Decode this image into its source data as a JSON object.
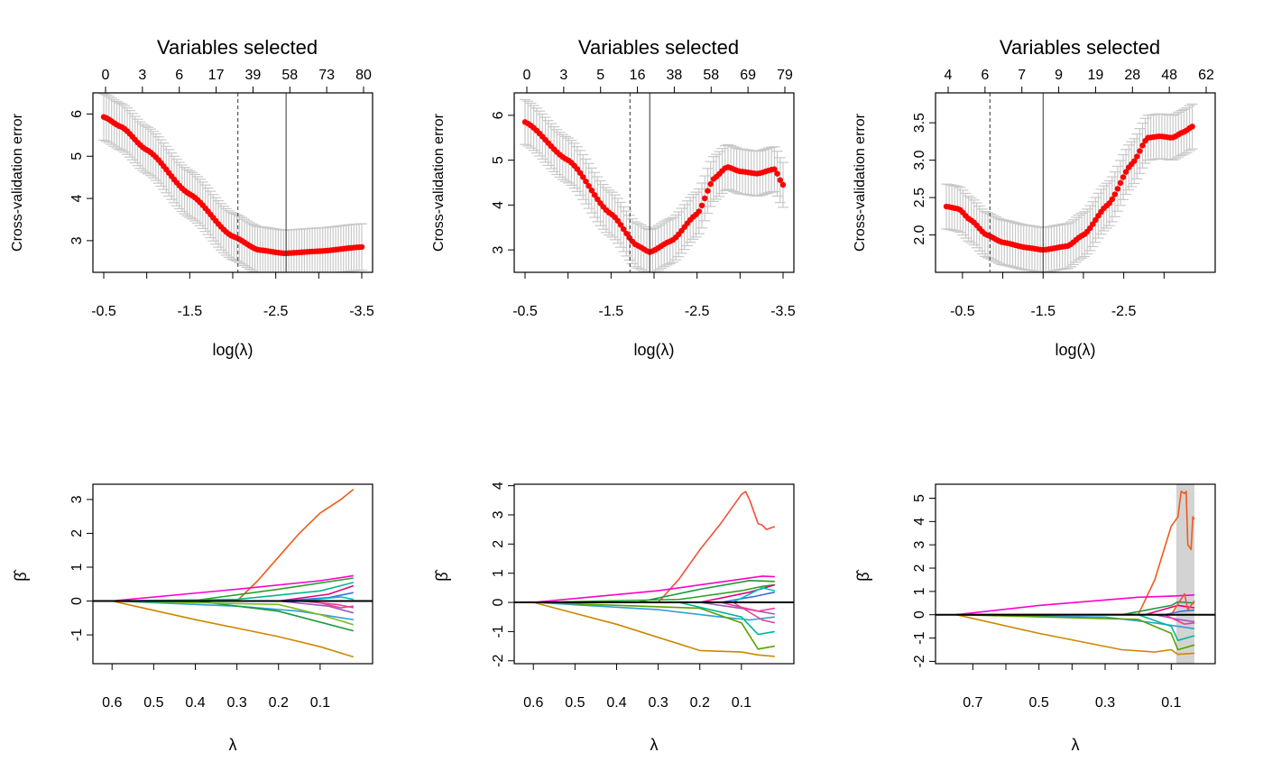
{
  "chart_data": [
    {
      "id": "cv1",
      "type": "scatter",
      "panel": "top-left",
      "title": "Variables selected",
      "top_ticks": [
        "0",
        "3",
        "6",
        "17",
        "39",
        "58",
        "73",
        "80"
      ],
      "xlabel": "log(λ)",
      "ylabel": "Cross-validation error",
      "xlim": [
        -0.5,
        -3.5
      ],
      "ylim": [
        2.25,
        6.5
      ],
      "xticks": [
        -0.5,
        -1.0,
        -1.5,
        -2.0,
        -2.5,
        -3.0,
        -3.5
      ],
      "xtick_labels": [
        "-0.5",
        "",
        "-1.5",
        "",
        "-2.5",
        "",
        "-3.5"
      ],
      "yticks": [
        3,
        4,
        5,
        6
      ],
      "ytick_labels": [
        "3",
        "4",
        "5",
        "6"
      ],
      "vlines": [
        {
          "x": -2.06,
          "style": "dashed"
        },
        {
          "x": -2.62,
          "style": "solid"
        }
      ],
      "series": {
        "name": "cv_error",
        "knots_x": [
          -0.5,
          -0.7,
          -1.0,
          -1.5,
          -2.0,
          -2.3,
          -2.6,
          -3.0,
          -3.5
        ],
        "knots_y": [
          5.93,
          5.7,
          5.15,
          4.1,
          3.1,
          2.78,
          2.7,
          2.75,
          2.85
        ],
        "se": 0.55,
        "n": 100
      }
    },
    {
      "id": "cv2",
      "type": "scatter",
      "panel": "top-middle",
      "title": "Variables selected",
      "top_ticks": [
        "0",
        "3",
        "5",
        "16",
        "38",
        "58",
        "69",
        "79"
      ],
      "xlabel": "log(λ)",
      "ylabel": "Cross-validation error",
      "xlim": [
        -0.5,
        -3.5
      ],
      "ylim": [
        2.5,
        6.5
      ],
      "xticks": [
        -0.5,
        -1.0,
        -1.5,
        -2.0,
        -2.5,
        -3.0,
        -3.5
      ],
      "xtick_labels": [
        "-0.5",
        "",
        "-1.5",
        "",
        "-2.5",
        "",
        "-3.5"
      ],
      "yticks": [
        3,
        4,
        5,
        6
      ],
      "ytick_labels": [
        "3",
        "4",
        "5",
        "6"
      ],
      "vlines": [
        {
          "x": -1.72,
          "style": "dashed"
        },
        {
          "x": -1.95,
          "style": "solid"
        }
      ],
      "series": {
        "name": "cv_error",
        "knots_x": [
          -0.5,
          -1.0,
          -1.5,
          -1.8,
          -1.95,
          -2.2,
          -2.5,
          -2.7,
          -2.85,
          -3.0,
          -3.2,
          -3.4,
          -3.5
        ],
        "knots_y": [
          5.85,
          5.0,
          3.8,
          3.1,
          2.95,
          3.2,
          3.8,
          4.6,
          4.85,
          4.75,
          4.7,
          4.8,
          4.45
        ],
        "se": 0.5,
        "n": 90
      }
    },
    {
      "id": "cv3",
      "type": "scatter",
      "panel": "top-right",
      "title": "Variables selected",
      "top_ticks": [
        "4",
        "6",
        "7",
        "9",
        "19",
        "28",
        "48",
        "62"
      ],
      "xlabel": "log(λ)",
      "ylabel": "Cross-validation error",
      "xlim": [
        -0.3,
        -3.5
      ],
      "ylim": [
        1.5,
        3.9
      ],
      "xticks": [
        -0.5,
        -1.0,
        -1.5,
        -2.0,
        -2.5,
        -3.0
      ],
      "xtick_labels": [
        "-0.5",
        "",
        "-1.5",
        "",
        "-2.5",
        ""
      ],
      "yticks": [
        2.0,
        2.5,
        3.0,
        3.5
      ],
      "ytick_labels": [
        "2.0",
        "2.5",
        "3.0",
        "3.5"
      ],
      "vlines": [
        {
          "x": -0.84,
          "style": "dashed"
        },
        {
          "x": -1.5,
          "style": "solid"
        }
      ],
      "series": {
        "name": "cv_error",
        "knots_x": [
          -0.3,
          -0.45,
          -0.6,
          -0.8,
          -1.0,
          -1.3,
          -1.5,
          -1.8,
          -2.0,
          -2.3,
          -2.6,
          -2.8,
          -2.95,
          -3.1,
          -3.25,
          -3.35
        ],
        "knots_y": [
          2.38,
          2.35,
          2.2,
          2.0,
          1.9,
          1.83,
          1.8,
          1.85,
          2.0,
          2.4,
          2.95,
          3.3,
          3.32,
          3.3,
          3.38,
          3.45
        ],
        "se": 0.3,
        "n": 90
      }
    },
    {
      "id": "path1",
      "type": "line",
      "panel": "bottom-left",
      "xlabel": "λ",
      "ylabel": "β̂",
      "xlim": [
        0.62,
        0.0
      ],
      "ylim": [
        -1.85,
        3.45
      ],
      "xticks": [
        0.6,
        0.5,
        0.4,
        0.3,
        0.2,
        0.1
      ],
      "xtick_labels": [
        "0.6",
        "0.5",
        "0.4",
        "0.3",
        "0.2",
        "0.1"
      ],
      "yticks": [
        -1,
        0,
        1,
        2,
        3
      ],
      "ytick_labels": [
        "-1",
        "0",
        "1",
        "2",
        "3"
      ],
      "hline": 0,
      "series": [
        {
          "name": "path-01",
          "color": "#f25a1a",
          "x": [
            0.6,
            0.3,
            0.25,
            0.2,
            0.15,
            0.1,
            0.05,
            0.02
          ],
          "y": [
            0,
            0,
            0.6,
            1.3,
            2.0,
            2.6,
            3.0,
            3.3
          ]
        },
        {
          "name": "path-02",
          "color": "#cc8800",
          "x": [
            0.6,
            0.4,
            0.2,
            0.1,
            0.02
          ],
          "y": [
            0,
            -0.55,
            -1.05,
            -1.35,
            -1.65
          ]
        },
        {
          "name": "path-03",
          "color": "#ff00cc",
          "x": [
            0.6,
            0.3,
            0.1,
            0.02
          ],
          "y": [
            0,
            0.35,
            0.6,
            0.75
          ]
        },
        {
          "name": "path-04",
          "color": "#2fa0d8",
          "x": [
            0.6,
            0.3,
            0.15,
            0.02
          ],
          "y": [
            0,
            -0.15,
            -0.3,
            -0.55
          ]
        },
        {
          "name": "path-05",
          "color": "#1a9a3a",
          "x": [
            0.6,
            0.4,
            0.2,
            0.02
          ],
          "y": [
            0,
            0,
            -0.3,
            -0.88
          ]
        },
        {
          "name": "path-06",
          "color": "#2aa02a",
          "x": [
            0.6,
            0.4,
            0.2,
            0.02
          ],
          "y": [
            0,
            0.02,
            0.35,
            0.68
          ]
        },
        {
          "name": "path-07",
          "color": "#00b894",
          "x": [
            0.6,
            0.3,
            0.1,
            0.02
          ],
          "y": [
            0,
            0.05,
            0.3,
            0.55
          ]
        },
        {
          "name": "path-08",
          "color": "#7bbf1a",
          "x": [
            0.6,
            0.2,
            0.1,
            0.02
          ],
          "y": [
            0,
            -0.1,
            -0.4,
            -0.7
          ]
        },
        {
          "name": "path-09",
          "color": "#e6007e",
          "x": [
            0.6,
            0.2,
            0.08,
            0.02
          ],
          "y": [
            0,
            0,
            0.2,
            0.45
          ]
        },
        {
          "name": "path-10",
          "color": "#9b59b6",
          "x": [
            0.6,
            0.2,
            0.08,
            0.02
          ],
          "y": [
            0,
            0,
            -0.15,
            -0.35
          ]
        },
        {
          "name": "path-11",
          "color": "#3b6fd8",
          "x": [
            0.6,
            0.2,
            0.08,
            0.02
          ],
          "y": [
            0,
            0,
            0.1,
            0.25
          ]
        },
        {
          "name": "path-12",
          "color": "#ff3399",
          "x": [
            0.6,
            0.15,
            0.06,
            0.02
          ],
          "y": [
            0,
            0,
            -0.1,
            -0.2
          ]
        },
        {
          "name": "path-13",
          "color": "#00c0c0",
          "x": [
            0.6,
            0.15,
            0.05,
            0.02
          ],
          "y": [
            0,
            0,
            0.12,
            0.05
          ]
        },
        {
          "name": "path-14",
          "color": "#e84393",
          "x": [
            0.6,
            0.12,
            0.05,
            0.02
          ],
          "y": [
            0,
            0,
            -0.2,
            -0.15
          ]
        }
      ]
    },
    {
      "id": "path2",
      "type": "line",
      "panel": "bottom-middle",
      "xlabel": "λ",
      "ylabel": "β̂",
      "xlim": [
        0.62,
        0.0
      ],
      "ylim": [
        -2.1,
        4.05
      ],
      "xticks": [
        0.6,
        0.5,
        0.4,
        0.3,
        0.2,
        0.1
      ],
      "xtick_labels": [
        "0.6",
        "0.5",
        "0.4",
        "0.3",
        "0.2",
        "0.1"
      ],
      "yticks": [
        -2,
        -1,
        0,
        1,
        2,
        3,
        4
      ],
      "ytick_labels": [
        "-2",
        "-1",
        "0",
        "1",
        "2",
        "3",
        "4"
      ],
      "hline": 0,
      "series": [
        {
          "name": "path-01",
          "color": "#f2503a",
          "x": [
            0.6,
            0.3,
            0.25,
            0.2,
            0.15,
            0.1,
            0.09,
            0.08,
            0.06,
            0.05,
            0.04,
            0.02
          ],
          "y": [
            0,
            0,
            0.8,
            1.8,
            2.7,
            3.7,
            3.8,
            3.5,
            2.7,
            2.65,
            2.5,
            2.6
          ]
        },
        {
          "name": "path-02",
          "color": "#cc8800",
          "x": [
            0.6,
            0.4,
            0.2,
            0.1,
            0.06,
            0.02
          ],
          "y": [
            0,
            -0.75,
            -1.65,
            -1.7,
            -1.8,
            -1.85
          ]
        },
        {
          "name": "path-03",
          "color": "#ff00cc",
          "x": [
            0.6,
            0.3,
            0.1,
            0.05,
            0.02
          ],
          "y": [
            0,
            0.4,
            0.8,
            0.9,
            0.88
          ]
        },
        {
          "name": "path-04",
          "color": "#2fa0d8",
          "x": [
            0.6,
            0.3,
            0.15,
            0.08,
            0.02
          ],
          "y": [
            0,
            -0.25,
            -0.5,
            -0.6,
            -0.5
          ]
        },
        {
          "name": "path-05",
          "color": "#1a9a3a",
          "x": [
            0.6,
            0.35,
            0.2,
            0.08,
            0.02
          ],
          "y": [
            0,
            0,
            0.45,
            0.75,
            0.72
          ]
        },
        {
          "name": "path-06",
          "color": "#5aa000",
          "x": [
            0.6,
            0.2,
            0.1,
            0.06,
            0.02
          ],
          "y": [
            0,
            -0.2,
            -0.7,
            -1.6,
            -1.5
          ]
        },
        {
          "name": "path-07",
          "color": "#00b894",
          "x": [
            0.6,
            0.25,
            0.1,
            0.06,
            0.02
          ],
          "y": [
            0,
            0,
            -0.5,
            -1.1,
            -1.0
          ]
        },
        {
          "name": "path-08",
          "color": "#2aa02a",
          "x": [
            0.6,
            0.25,
            0.1,
            0.05,
            0.02
          ],
          "y": [
            0,
            0.1,
            0.4,
            0.55,
            0.6
          ]
        },
        {
          "name": "path-09",
          "color": "#e6007e",
          "x": [
            0.6,
            0.2,
            0.08,
            0.02
          ],
          "y": [
            0,
            0,
            0.35,
            0.6
          ]
        },
        {
          "name": "path-10",
          "color": "#9b59b6",
          "x": [
            0.6,
            0.2,
            0.08,
            0.02
          ],
          "y": [
            0,
            0,
            -0.25,
            -0.4
          ]
        },
        {
          "name": "path-11",
          "color": "#3b6fd8",
          "x": [
            0.6,
            0.15,
            0.07,
            0.02
          ],
          "y": [
            0,
            0,
            0.2,
            0.35
          ]
        },
        {
          "name": "path-12",
          "color": "#ff3399",
          "x": [
            0.6,
            0.15,
            0.06,
            0.02
          ],
          "y": [
            0,
            0,
            -0.3,
            -0.2
          ]
        },
        {
          "name": "path-13",
          "color": "#00c0c0",
          "x": [
            0.6,
            0.12,
            0.05,
            0.02
          ],
          "y": [
            0,
            0,
            0.5,
            0.4
          ]
        },
        {
          "name": "path-14",
          "color": "#e84393",
          "x": [
            0.6,
            0.12,
            0.05,
            0.02
          ],
          "y": [
            0,
            0,
            -0.6,
            -0.7
          ]
        }
      ]
    },
    {
      "id": "path3",
      "type": "line",
      "panel": "bottom-right",
      "xlabel": "λ",
      "ylabel": "β̂",
      "xlim": [
        0.78,
        0.0
      ],
      "ylim": [
        -2.1,
        5.6
      ],
      "xticks": [
        0.7,
        0.6,
        0.5,
        0.4,
        0.3,
        0.2,
        0.1
      ],
      "xtick_labels": [
        "0.7",
        "",
        "0.5",
        "",
        "0.3",
        "",
        "0.1"
      ],
      "yticks": [
        -2,
        -1,
        0,
        1,
        2,
        3,
        4,
        5
      ],
      "ytick_labels": [
        "-2",
        "-1",
        "0",
        "1",
        "2",
        "3",
        "4",
        "5"
      ],
      "hline": 0,
      "shade": {
        "from": 0.085,
        "to": 0.03
      },
      "series": [
        {
          "name": "path-01",
          "color": "#f25a1a",
          "x": [
            0.75,
            0.2,
            0.15,
            0.1,
            0.08,
            0.07,
            0.06,
            0.055,
            0.05,
            0.04,
            0.035,
            0.03
          ],
          "y": [
            0,
            0,
            1.5,
            3.8,
            4.2,
            5.3,
            5.2,
            5.3,
            3.0,
            2.8,
            4.2,
            4.1
          ]
        },
        {
          "name": "path-02",
          "color": "#cc8800",
          "x": [
            0.75,
            0.5,
            0.25,
            0.15,
            0.1,
            0.08,
            0.03
          ],
          "y": [
            0,
            -0.8,
            -1.5,
            -1.6,
            -1.5,
            -1.7,
            -1.65
          ]
        },
        {
          "name": "path-03",
          "color": "#ff00cc",
          "x": [
            0.75,
            0.5,
            0.2,
            0.1,
            0.03
          ],
          "y": [
            0,
            0.4,
            0.75,
            0.8,
            0.85
          ]
        },
        {
          "name": "path-04",
          "color": "#2fa0d8",
          "x": [
            0.75,
            0.3,
            0.15,
            0.08,
            0.03
          ],
          "y": [
            0,
            -0.1,
            -0.35,
            -0.5,
            -0.6
          ]
        },
        {
          "name": "path-05",
          "color": "#1a9a3a",
          "x": [
            0.75,
            0.25,
            0.1,
            0.08,
            0.03
          ],
          "y": [
            0,
            0,
            0.4,
            0.55,
            0.5
          ]
        },
        {
          "name": "path-06",
          "color": "#5aa000",
          "x": [
            0.75,
            0.2,
            0.1,
            0.08,
            0.03
          ],
          "y": [
            0,
            -0.2,
            -0.8,
            -1.5,
            -1.3
          ]
        },
        {
          "name": "path-07",
          "color": "#00b894",
          "x": [
            0.75,
            0.2,
            0.1,
            0.08,
            0.03
          ],
          "y": [
            0,
            0,
            -0.5,
            -1.1,
            -0.9
          ]
        },
        {
          "name": "path-08",
          "color": "#e6007e",
          "x": [
            0.75,
            0.18,
            0.08,
            0.03
          ],
          "y": [
            0,
            0,
            0.4,
            0.3
          ]
        },
        {
          "name": "path-09",
          "color": "#9b59b6",
          "x": [
            0.75,
            0.15,
            0.08,
            0.03
          ],
          "y": [
            0,
            0,
            -0.2,
            -0.3
          ]
        },
        {
          "name": "path-10",
          "color": "#3b6fd8",
          "x": [
            0.75,
            0.12,
            0.07,
            0.03
          ],
          "y": [
            0,
            0,
            0.15,
            0.2
          ]
        },
        {
          "name": "path-11",
          "color": "#ff3399",
          "x": [
            0.75,
            0.12,
            0.06,
            0.03
          ],
          "y": [
            0,
            0,
            -0.4,
            -0.35
          ]
        },
        {
          "name": "path-12",
          "color": "#f2503a",
          "x": [
            0.75,
            0.1,
            0.06,
            0.05,
            0.03
          ],
          "y": [
            0,
            0,
            0.9,
            0.2,
            0.6
          ]
        }
      ]
    }
  ]
}
